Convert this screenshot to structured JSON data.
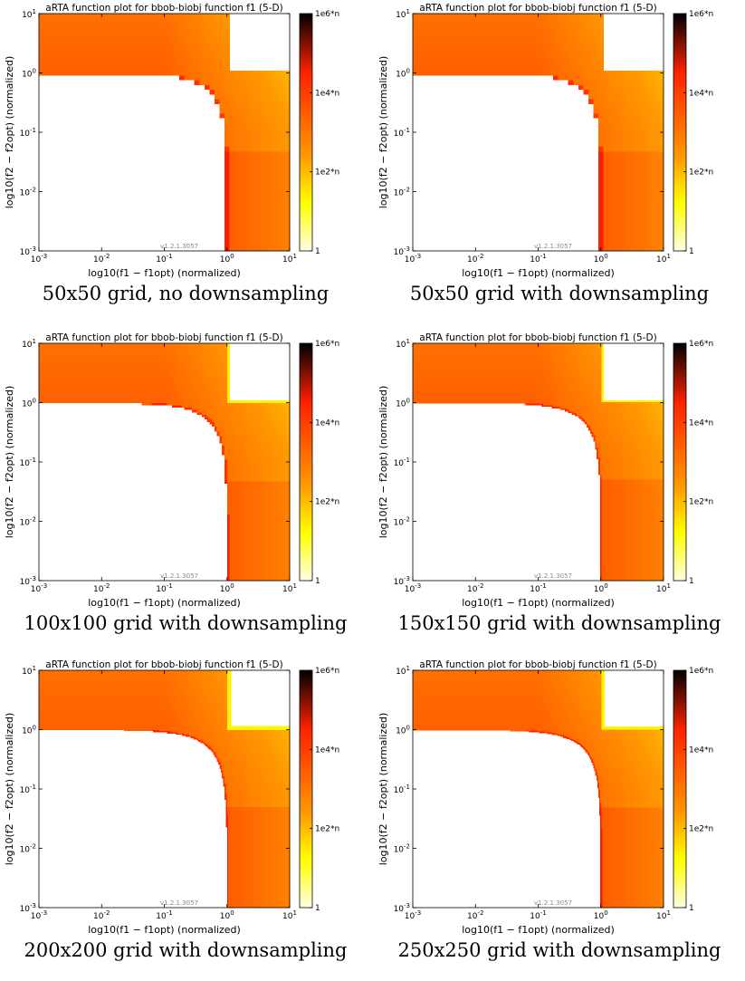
{
  "colors": {
    "heat_low": "#ffffe6",
    "heat_mid_yellow": "#ffff00",
    "heat_orange": "#ff9900",
    "heat_red": "#ff2200",
    "heat_high": "#000000",
    "background": "#ffffff"
  },
  "chart_data": [
    {
      "type": "heatmap",
      "title": "aRTA function plot for bbob-biobj function f1 (5-D)",
      "xlabel": "log10(f1 − f1opt) (normalized)",
      "ylabel": "log10(f2 − f2opt) (normalized)",
      "x_scale": "log",
      "y_scale": "log",
      "xlim": [
        0.001,
        10
      ],
      "ylim": [
        0.001,
        10
      ],
      "x_ticks": [
        "10-3",
        "10-2",
        "10-1",
        "100",
        "101"
      ],
      "y_ticks": [
        "10-3",
        "10-2",
        "10-1",
        "100",
        "101"
      ],
      "colorbar_ticks": [
        "1e6*n",
        "1e4*n",
        "1e2*n",
        "1"
      ],
      "version": "v1.2.1.3057",
      "caption": "50x50 grid, no downsampling",
      "grid_size": 50
    },
    {
      "type": "heatmap",
      "title": "aRTA function plot for bbob-biobj function f1 (5-D)",
      "xlabel": "log10(f1 − f1opt) (normalized)",
      "ylabel": "log10(f2 − f2opt) (normalized)",
      "x_scale": "log",
      "y_scale": "log",
      "xlim": [
        0.001,
        10
      ],
      "ylim": [
        0.001,
        10
      ],
      "x_ticks": [
        "10-3",
        "10-2",
        "10-1",
        "100",
        "101"
      ],
      "y_ticks": [
        "10-3",
        "10-2",
        "10-1",
        "100",
        "101"
      ],
      "colorbar_ticks": [
        "1e6*n",
        "1e4*n",
        "1e2*n",
        "1"
      ],
      "version": "v1.2.1.3057",
      "caption": "50x50 grid with downsampling",
      "grid_size": 50
    },
    {
      "type": "heatmap",
      "title": "aRTA function plot for bbob-biobj function f1 (5-D)",
      "xlabel": "log10(f1 − f1opt) (normalized)",
      "ylabel": "log10(f2 − f2opt) (normalized)",
      "x_scale": "log",
      "y_scale": "log",
      "xlim": [
        0.001,
        10
      ],
      "ylim": [
        0.001,
        10
      ],
      "x_ticks": [
        "10-3",
        "10-2",
        "10-1",
        "100",
        "101"
      ],
      "y_ticks": [
        "10-3",
        "10-2",
        "10-1",
        "100",
        "101"
      ],
      "colorbar_ticks": [
        "1e6*n",
        "1e4*n",
        "1e2*n",
        "1"
      ],
      "version": "v1.2.1.3057",
      "caption": "100x100 grid with downsampling",
      "grid_size": 100
    },
    {
      "type": "heatmap",
      "title": "aRTA function plot for bbob-biobj function f1 (5-D)",
      "xlabel": "log10(f1 − f1opt) (normalized)",
      "ylabel": "log10(f2 − f2opt) (normalized)",
      "x_scale": "log",
      "y_scale": "log",
      "xlim": [
        0.001,
        10
      ],
      "ylim": [
        0.001,
        10
      ],
      "x_ticks": [
        "10-3",
        "10-2",
        "10-1",
        "100",
        "101"
      ],
      "y_ticks": [
        "10-3",
        "10-2",
        "10-1",
        "100",
        "101"
      ],
      "colorbar_ticks": [
        "1e6*n",
        "1e4*n",
        "1e2*n",
        "1"
      ],
      "version": "v1.2.1.3057",
      "caption": "150x150 grid with downsampling",
      "grid_size": 150
    },
    {
      "type": "heatmap",
      "title": "aRTA function plot for bbob-biobj function f1 (5-D)",
      "xlabel": "log10(f1 − f1opt) (normalized)",
      "ylabel": "log10(f2 − f2opt) (normalized)",
      "x_scale": "log",
      "y_scale": "log",
      "xlim": [
        0.001,
        10
      ],
      "ylim": [
        0.001,
        10
      ],
      "x_ticks": [
        "10-3",
        "10-2",
        "10-1",
        "100",
        "101"
      ],
      "y_ticks": [
        "10-3",
        "10-2",
        "10-1",
        "100",
        "101"
      ],
      "colorbar_ticks": [
        "1e6*n",
        "1e4*n",
        "1e2*n",
        "1"
      ],
      "version": "v1.2.1.3057",
      "caption": "200x200 grid with downsampling",
      "grid_size": 200
    },
    {
      "type": "heatmap",
      "title": "aRTA function plot for bbob-biobj function f1 (5-D)",
      "xlabel": "log10(f1 − f1opt) (normalized)",
      "ylabel": "log10(f2 − f2opt) (normalized)",
      "x_scale": "log",
      "y_scale": "log",
      "xlim": [
        0.001,
        10
      ],
      "ylim": [
        0.001,
        10
      ],
      "x_ticks": [
        "10-3",
        "10-2",
        "10-1",
        "100",
        "101"
      ],
      "y_ticks": [
        "10-3",
        "10-2",
        "10-1",
        "100",
        "101"
      ],
      "colorbar_ticks": [
        "1e6*n",
        "1e4*n",
        "1e2*n",
        "1"
      ],
      "version": "v1.2.1.3057",
      "caption": "250x250 grid with downsampling",
      "grid_size": 250
    }
  ]
}
